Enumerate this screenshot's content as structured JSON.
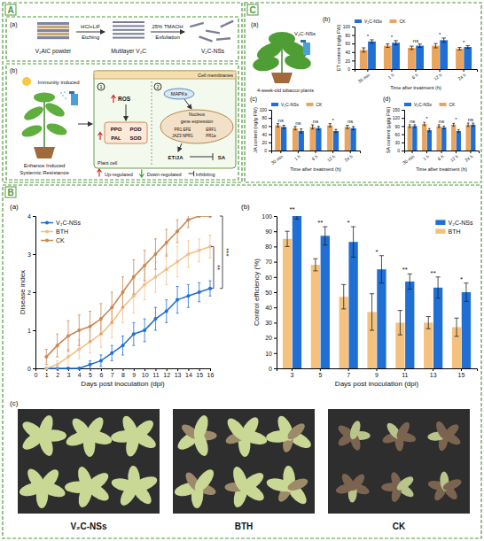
{
  "figure": {
    "panel_letters": [
      "A",
      "B",
      "C"
    ],
    "panel_A": {
      "sublabels": [
        "(a)",
        "(b)"
      ],
      "materials": [
        "V₂AlC powder",
        "Mutilayer V₂C",
        "V₂C-NSs"
      ],
      "steps": [
        [
          "HCl+LiF",
          "Etching"
        ],
        [
          "25% TMAOH",
          "Exfoliation"
        ]
      ],
      "induced": "Immunity induced",
      "resistance": "Enhance Induced Systemic Resistance",
      "membrane": "Cell membranes",
      "cell": "Plant cell",
      "routes": [
        "1",
        "2"
      ],
      "ros": "ROS",
      "enzymes": [
        "PPO",
        "POD",
        "PAL",
        "SOD"
      ],
      "mapk": "MAPKs",
      "nucleus": "Nucleus",
      "expression": "gene expression",
      "genes": [
        "PR1 EFE",
        "ERF1",
        "JAZ3 NPR1",
        "PR1a"
      ],
      "et_ja": "ET/JA",
      "sa": "SA",
      "key": [
        "Up-regulated",
        "Down-regulated",
        "Inhibiting"
      ]
    },
    "panel_B": {
      "sublabel": "(c)",
      "photo_labels": [
        "V₂C-NSs",
        "BTH",
        "CK"
      ]
    },
    "panel_C": {
      "sublabel": "(a)",
      "spray_label": "V₂C-NSs",
      "caption": "4-week-old tobacco plants"
    }
  },
  "chart_data": [
    {
      "type": "line",
      "panel": "(a)",
      "x_label": "Days post inoculation (dpi)",
      "y_label": "Disease index",
      "x": [
        1,
        2,
        3,
        4,
        5,
        6,
        7,
        8,
        9,
        10,
        11,
        12,
        13,
        14,
        15,
        16
      ],
      "xlim": [
        0,
        16
      ],
      "xticks": [
        0,
        1,
        2,
        3,
        4,
        5,
        6,
        7,
        8,
        9,
        10,
        11,
        12,
        13,
        14,
        15,
        16
      ],
      "ylim": [
        0,
        4
      ],
      "yticks": [
        0,
        1,
        2,
        3,
        4
      ],
      "legend": "top-left",
      "series": [
        {
          "name": "V₂C-NSs",
          "color": "#1f6fd4",
          "marker": "circle",
          "values": [
            0,
            0,
            0,
            0,
            0.1,
            0.2,
            0.4,
            0.6,
            0.9,
            1.0,
            1.3,
            1.5,
            1.8,
            1.9,
            2.0,
            2.1
          ],
          "errors": [
            0,
            0,
            0,
            0,
            0.1,
            0.15,
            0.2,
            0.25,
            0.3,
            0.3,
            0.3,
            0.3,
            0.35,
            0.3,
            0.25,
            0.2
          ]
        },
        {
          "name": "BTH",
          "color": "#f2c08a",
          "marker": "circle",
          "values": [
            0,
            0.1,
            0.3,
            0.5,
            0.7,
            0.9,
            1.2,
            1.6,
            1.9,
            2.2,
            2.4,
            2.6,
            2.8,
            3,
            3.1,
            3.2
          ],
          "errors": [
            0,
            0.1,
            0.2,
            0.25,
            0.3,
            0.35,
            0.4,
            0.4,
            0.45,
            0.4,
            0.4,
            0.4,
            0.4,
            0.35,
            0.3,
            0.3
          ]
        },
        {
          "name": "CK",
          "color": "#c98955",
          "marker": "circle",
          "values": [
            0.3,
            0.6,
            0.85,
            1.0,
            1.1,
            1.3,
            1.6,
            2.0,
            2.4,
            2.7,
            3.0,
            3.3,
            3.6,
            3.9,
            4.0,
            4.0
          ],
          "errors": [
            0.2,
            0.3,
            0.4,
            0.4,
            0.4,
            0.4,
            0.4,
            0.4,
            0.45,
            0.4,
            0.4,
            0.35,
            0.3,
            0.2,
            0,
            0
          ]
        }
      ],
      "significance": [
        {
          "text": "**",
          "series": [
            0,
            1
          ]
        },
        {
          "text": "***",
          "series": [
            0,
            2
          ]
        }
      ]
    },
    {
      "type": "bar",
      "panel": "(b)",
      "x_label": "Days post inoculation (dpi)",
      "y_label": "Control efficiency (%)",
      "categories": [
        "3",
        "5",
        "7",
        "9",
        "11",
        "13",
        "15"
      ],
      "ylim": [
        0,
        100
      ],
      "yticks": [
        0,
        10,
        20,
        30,
        40,
        50,
        60,
        70,
        80,
        90,
        100
      ],
      "legend": "top-right",
      "series": [
        {
          "name": "V₂C-NSs",
          "color": "#1f6fd4",
          "values": [
            100,
            87,
            83,
            65,
            57,
            53,
            50
          ],
          "errors": [
            2,
            6,
            10,
            9,
            5,
            7,
            6
          ]
        },
        {
          "name": "BTH",
          "color": "#f5c27d",
          "values": [
            85,
            68,
            47,
            37,
            30,
            30,
            27
          ],
          "errors": [
            5,
            4,
            8,
            12,
            8,
            4,
            6
          ]
        }
      ],
      "significance": [
        "**",
        "**",
        "*",
        "*",
        "**",
        "**",
        "*"
      ]
    },
    {
      "type": "bar",
      "panel": "(b)",
      "x_label": "Time after treatment (h)",
      "y_label": "ET content (ng/g FW)",
      "categories": [
        "30 min",
        "1 h",
        "6 h",
        "12 h",
        "24 h"
      ],
      "ylim": [
        0,
        100
      ],
      "yticks": [
        0,
        20,
        40,
        60,
        80,
        100
      ],
      "legend": "top",
      "series": [
        {
          "name": "V₂C-NSs",
          "color": "#1f6fd4",
          "values": [
            65,
            62,
            55,
            68,
            52
          ],
          "errors": [
            4,
            5,
            4,
            5,
            3
          ]
        },
        {
          "name": "CK",
          "color": "#eaa55c",
          "values": [
            45,
            55,
            50,
            55,
            48
          ],
          "errors": [
            5,
            4,
            4,
            5,
            3
          ]
        }
      ],
      "significance": [
        "*",
        "*",
        "ns",
        "*",
        "*"
      ]
    },
    {
      "type": "bar",
      "panel": "(c)",
      "x_label": "Time after treatment (h)",
      "y_label": "JA content (ng/g FW)",
      "categories": [
        "30 min",
        "1 h",
        "6 h",
        "12 h",
        "24 h"
      ],
      "ylim": [
        0,
        100
      ],
      "yticks": [
        0,
        20,
        40,
        60,
        80,
        100
      ],
      "legend": "top",
      "series": [
        {
          "name": "V₂C-NSs",
          "color": "#1f6fd4",
          "values": [
            58,
            48,
            55,
            48,
            55
          ],
          "errors": [
            4,
            5,
            4,
            4,
            4
          ]
        },
        {
          "name": "CK",
          "color": "#eaa55c",
          "values": [
            62,
            55,
            58,
            62,
            58
          ],
          "errors": [
            4,
            4,
            5,
            4,
            4
          ]
        }
      ],
      "significance": [
        "ns",
        "ns",
        "ns",
        "*",
        "ns"
      ]
    },
    {
      "type": "bar",
      "panel": "(d)",
      "x_label": "Time after treatment (h)",
      "y_label": "SA content (μg/g FW)",
      "categories": [
        "30 min",
        "1 h",
        "6 h",
        "12 h",
        "24 h"
      ],
      "ylim": [
        0,
        150
      ],
      "yticks": [
        0,
        30,
        60,
        90,
        120,
        150
      ],
      "legend": "top",
      "series": [
        {
          "name": "V₂C-NSs",
          "color": "#1f6fd4",
          "values": [
            90,
            75,
            85,
            72,
            95
          ],
          "errors": [
            5,
            6,
            5,
            5,
            6
          ]
        },
        {
          "name": "CK",
          "color": "#eaa55c",
          "values": [
            90,
            98,
            90,
            95,
            95
          ],
          "errors": [
            5,
            6,
            5,
            5,
            6
          ]
        }
      ],
      "significance": [
        "ns",
        "*",
        "ns",
        "*",
        "ns"
      ]
    }
  ]
}
